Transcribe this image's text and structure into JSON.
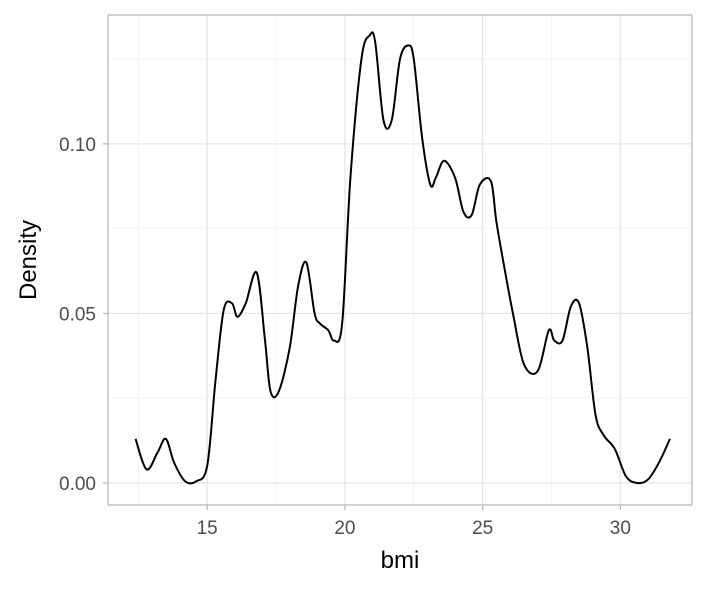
{
  "chart_data": {
    "type": "line",
    "title": "",
    "xlabel": "bmi",
    "ylabel": "Density",
    "xlim": [
      11.4,
      32.6
    ],
    "ylim": [
      -0.0065,
      0.138
    ],
    "x_ticks": [
      15,
      20,
      25,
      30
    ],
    "x_tick_labels": [
      "15",
      "20",
      "25",
      "30"
    ],
    "y_ticks": [
      0.0,
      0.05,
      0.1
    ],
    "y_tick_labels": [
      "0.00",
      "0.05",
      "0.10"
    ],
    "grid": true,
    "legend": "none",
    "colors": {
      "line": "#000000",
      "panel_border": "#b3b3b3",
      "grid": "#e6e6e6"
    },
    "series": [
      {
        "x": [
          12.4,
          12.8,
          13.2,
          13.5,
          13.8,
          14.2,
          14.6,
          15.0,
          15.3,
          15.6,
          15.9,
          16.1,
          16.4,
          16.8,
          17.1,
          17.3,
          17.6,
          18.0,
          18.3,
          18.6,
          18.9,
          19.1,
          19.4,
          19.6,
          19.9,
          20.2,
          20.6,
          20.9,
          21.1,
          21.4,
          21.7,
          22.0,
          22.3,
          22.5,
          22.8,
          23.1,
          23.3,
          23.6,
          24.0,
          24.3,
          24.6,
          24.9,
          25.3,
          25.5,
          25.8,
          26.1,
          26.5,
          27.0,
          27.4,
          27.6,
          27.9,
          28.2,
          28.5,
          28.8,
          29.1,
          29.4,
          29.8,
          30.2,
          30.6,
          31.0,
          31.4,
          31.8
        ],
        "y": [
          0.013,
          0.004,
          0.009,
          0.013,
          0.006,
          0.0005,
          0.0005,
          0.005,
          0.03,
          0.051,
          0.053,
          0.049,
          0.053,
          0.062,
          0.042,
          0.027,
          0.027,
          0.04,
          0.058,
          0.065,
          0.05,
          0.047,
          0.045,
          0.042,
          0.047,
          0.09,
          0.125,
          0.132,
          0.13,
          0.107,
          0.107,
          0.125,
          0.129,
          0.125,
          0.102,
          0.088,
          0.09,
          0.095,
          0.09,
          0.08,
          0.079,
          0.088,
          0.089,
          0.077,
          0.063,
          0.05,
          0.035,
          0.033,
          0.045,
          0.042,
          0.042,
          0.052,
          0.053,
          0.04,
          0.02,
          0.014,
          0.01,
          0.002,
          0.0,
          0.001,
          0.006,
          0.013
        ]
      }
    ]
  }
}
